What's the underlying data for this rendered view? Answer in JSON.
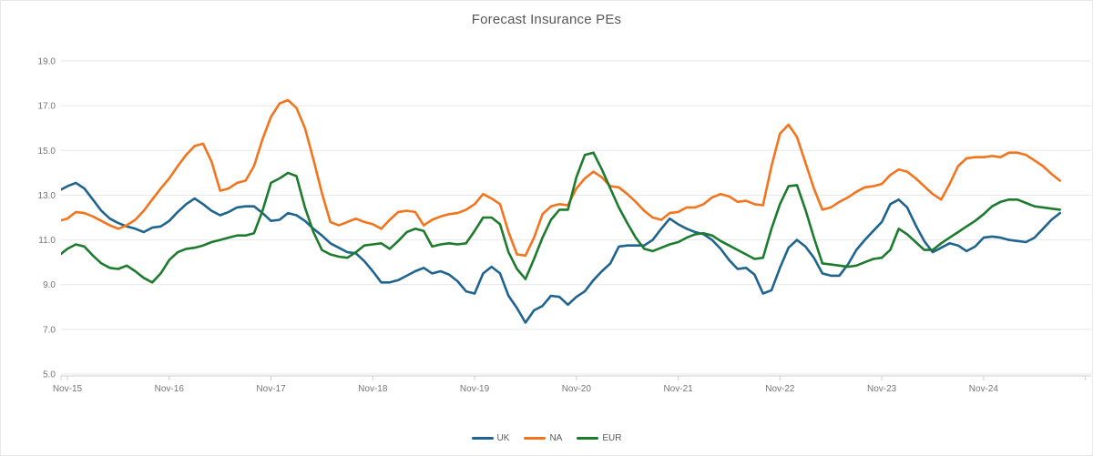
{
  "title": "Forecast Insurance PEs",
  "chart_data": {
    "type": "line",
    "title": "Forecast Insurance PEs",
    "grid": "horizontal",
    "legend_position": "bottom-center",
    "ylim": [
      5,
      19
    ],
    "y_ticks": [
      5,
      7,
      9,
      11,
      13,
      15,
      17,
      19
    ],
    "y_tick_labels": [
      "5.0",
      "7.0",
      "9.0",
      "11.0",
      "13.0",
      "15.0",
      "17.0",
      "19.0"
    ],
    "x_tick_labels": [
      "Nov-15",
      "Nov-16",
      "Nov-17",
      "Nov-18",
      "Nov-19",
      "Nov-20",
      "Nov-21",
      "Nov-22",
      "Nov-23",
      "Nov-24"
    ],
    "x": [
      "Oct-15",
      "Nov-15",
      "Dec-15",
      "Jan-16",
      "Feb-16",
      "Mar-16",
      "Apr-16",
      "May-16",
      "Jun-16",
      "Jul-16",
      "Aug-16",
      "Sep-16",
      "Oct-16",
      "Nov-16",
      "Dec-16",
      "Jan-17",
      "Feb-17",
      "Mar-17",
      "Apr-17",
      "May-17",
      "Jun-17",
      "Jul-17",
      "Aug-17",
      "Sep-17",
      "Oct-17",
      "Nov-17",
      "Dec-17",
      "Jan-18",
      "Feb-18",
      "Mar-18",
      "Apr-18",
      "May-18",
      "Jun-18",
      "Jul-18",
      "Aug-18",
      "Sep-18",
      "Oct-18",
      "Nov-18",
      "Dec-18",
      "Jan-19",
      "Feb-19",
      "Mar-19",
      "Apr-19",
      "May-19",
      "Jun-19",
      "Jul-19",
      "Aug-19",
      "Sep-19",
      "Oct-19",
      "Nov-19",
      "Dec-19",
      "Jan-20",
      "Feb-20",
      "Mar-20",
      "Apr-20",
      "May-20",
      "Jun-20",
      "Jul-20",
      "Aug-20",
      "Sep-20",
      "Oct-20",
      "Nov-20",
      "Dec-20",
      "Jan-21",
      "Feb-21",
      "Mar-21",
      "Apr-21",
      "May-21",
      "Jun-21",
      "Jul-21",
      "Aug-21",
      "Sep-21",
      "Oct-21",
      "Nov-21",
      "Dec-21",
      "Jan-22",
      "Feb-22",
      "Mar-22",
      "Apr-22",
      "May-22",
      "Jun-22",
      "Jul-22",
      "Aug-22",
      "Sep-22",
      "Oct-22",
      "Nov-22",
      "Dec-22",
      "Jan-23",
      "Feb-23",
      "Mar-23",
      "Apr-23",
      "May-23",
      "Jun-23",
      "Jul-23",
      "Aug-23",
      "Sep-23",
      "Oct-23",
      "Nov-23",
      "Dec-23",
      "Jan-24",
      "Feb-24",
      "Mar-24",
      "Apr-24",
      "May-24",
      "Jun-24",
      "Jul-24",
      "Aug-24",
      "Sep-24",
      "Oct-24",
      "Nov-24",
      "Dec-24",
      "Jan-25",
      "Feb-25",
      "Mar-25",
      "Apr-25",
      "May-25",
      "Jun-25",
      "Jul-25",
      "Aug-25"
    ],
    "series": [
      {
        "name": "UK",
        "color": "#1e648f",
        "values": [
          13.2,
          13.4,
          13.55,
          13.3,
          12.8,
          12.3,
          11.95,
          11.75,
          11.6,
          11.5,
          11.35,
          11.55,
          11.6,
          11.85,
          12.25,
          12.6,
          12.85,
          12.6,
          12.3,
          12.1,
          12.25,
          12.45,
          12.5,
          12.5,
          12.2,
          11.85,
          11.9,
          12.2,
          12.1,
          11.85,
          11.5,
          11.2,
          10.85,
          10.65,
          10.45,
          10.4,
          10.05,
          9.6,
          9.1,
          9.1,
          9.2,
          9.4,
          9.6,
          9.75,
          9.5,
          9.6,
          9.45,
          9.15,
          8.7,
          8.6,
          9.5,
          9.8,
          9.5,
          8.5,
          7.95,
          7.3,
          7.85,
          8.05,
          8.5,
          8.45,
          8.1,
          8.45,
          8.7,
          9.2,
          9.6,
          9.95,
          10.7,
          10.75,
          10.75,
          10.75,
          11.0,
          11.5,
          11.95,
          11.7,
          11.5,
          11.35,
          11.25,
          11.0,
          10.6,
          10.1,
          9.7,
          9.75,
          9.45,
          8.6,
          8.75,
          9.75,
          10.65,
          11.0,
          10.7,
          10.2,
          9.5,
          9.4,
          9.4,
          9.9,
          10.55,
          11.0,
          11.4,
          11.8,
          12.6,
          12.8,
          12.45,
          11.65,
          10.95,
          10.45,
          10.65,
          10.85,
          10.75,
          10.5,
          10.7,
          11.1,
          11.15,
          11.1,
          11.0,
          10.95,
          10.9,
          11.1,
          11.5,
          11.9,
          12.2
        ]
      },
      {
        "name": "NA",
        "color": "#f3741d",
        "values": [
          11.85,
          11.95,
          12.25,
          12.2,
          12.05,
          11.85,
          11.65,
          11.5,
          11.65,
          11.9,
          12.3,
          12.8,
          13.3,
          13.75,
          14.3,
          14.8,
          15.2,
          15.3,
          14.5,
          13.2,
          13.3,
          13.55,
          13.65,
          14.3,
          15.5,
          16.5,
          17.1,
          17.25,
          16.9,
          16.0,
          14.6,
          13.1,
          11.8,
          11.65,
          11.8,
          11.95,
          11.8,
          11.7,
          11.5,
          11.9,
          12.25,
          12.3,
          12.25,
          11.65,
          11.9,
          12.05,
          12.15,
          12.2,
          12.35,
          12.6,
          13.05,
          12.85,
          12.6,
          11.35,
          10.35,
          10.3,
          11.1,
          12.15,
          12.5,
          12.6,
          12.55,
          13.3,
          13.75,
          14.05,
          13.8,
          13.4,
          13.35,
          13.05,
          12.7,
          12.3,
          12.0,
          11.9,
          12.2,
          12.25,
          12.45,
          12.45,
          12.6,
          12.9,
          13.05,
          12.95,
          12.7,
          12.75,
          12.6,
          12.55,
          14.3,
          15.75,
          16.15,
          15.6,
          14.45,
          13.3,
          12.35,
          12.45,
          12.7,
          12.9,
          13.15,
          13.35,
          13.4,
          13.5,
          13.9,
          14.15,
          14.05,
          13.75,
          13.4,
          13.05,
          12.8,
          13.5,
          14.3,
          14.65,
          14.7,
          14.7,
          14.75,
          14.7,
          14.9,
          14.9,
          14.8,
          14.55,
          14.3,
          13.95,
          13.65
        ]
      },
      {
        "name": "EUR",
        "color": "#1d7b2e",
        "values": [
          10.3,
          10.6,
          10.8,
          10.7,
          10.3,
          9.95,
          9.75,
          9.7,
          9.85,
          9.6,
          9.3,
          9.1,
          9.5,
          10.1,
          10.45,
          10.6,
          10.65,
          10.75,
          10.9,
          11.0,
          11.1,
          11.2,
          11.2,
          11.3,
          12.3,
          13.55,
          13.75,
          14.0,
          13.85,
          12.45,
          11.35,
          10.55,
          10.35,
          10.25,
          10.2,
          10.45,
          10.75,
          10.8,
          10.85,
          10.6,
          10.95,
          11.35,
          11.5,
          11.4,
          10.7,
          10.8,
          10.85,
          10.8,
          10.85,
          11.4,
          12.0,
          12.0,
          11.7,
          10.45,
          9.7,
          9.25,
          10.15,
          11.1,
          11.9,
          12.35,
          12.35,
          13.8,
          14.8,
          14.9,
          14.15,
          13.3,
          12.45,
          11.75,
          11.1,
          10.6,
          10.5,
          10.65,
          10.8,
          10.9,
          11.1,
          11.25,
          11.3,
          11.2,
          10.95,
          10.75,
          10.55,
          10.35,
          10.15,
          10.2,
          11.5,
          12.6,
          13.4,
          13.45,
          12.35,
          11.1,
          9.95,
          9.9,
          9.85,
          9.8,
          9.85,
          10.0,
          10.15,
          10.2,
          10.55,
          11.5,
          11.25,
          10.9,
          10.55,
          10.55,
          10.85,
          11.1,
          11.35,
          11.6,
          11.85,
          12.15,
          12.5,
          12.7,
          12.8,
          12.8,
          12.65,
          12.5,
          12.45,
          12.4,
          12.35
        ]
      }
    ]
  }
}
